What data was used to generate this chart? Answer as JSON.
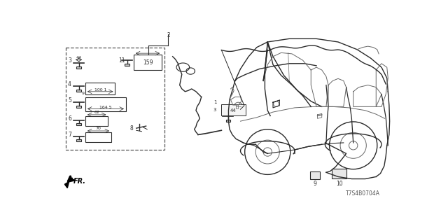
{
  "background_color": "#ffffff",
  "diagram_code": "T7S4B0704A",
  "fig_width": 6.4,
  "fig_height": 3.2,
  "dpi": 100,
  "line_color": "#2a2a2a",
  "light_color": "#666666",
  "box_color": "#444444"
}
